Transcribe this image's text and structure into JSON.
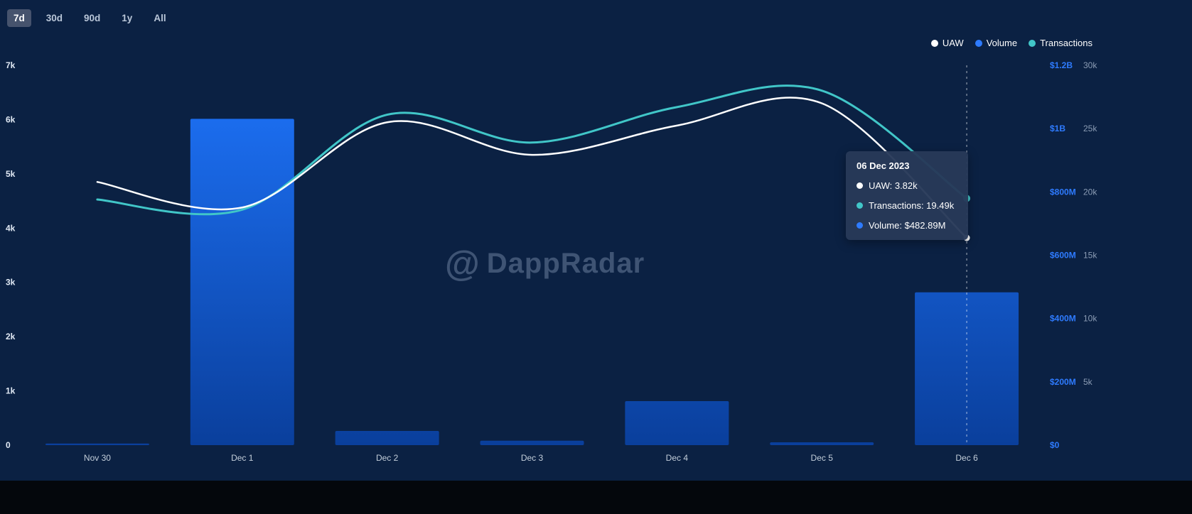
{
  "toolbar": {
    "ranges": [
      {
        "label": "7d",
        "active": true
      },
      {
        "label": "30d",
        "active": false
      },
      {
        "label": "90d",
        "active": false
      },
      {
        "label": "1y",
        "active": false
      },
      {
        "label": "All",
        "active": false
      }
    ]
  },
  "legend": {
    "items": [
      {
        "label": "UAW",
        "color": "#ffffff"
      },
      {
        "label": "Volume",
        "color": "#2e7bff"
      },
      {
        "label": "Transactions",
        "color": "#41c6c8"
      }
    ]
  },
  "tooltip": {
    "date": "06 Dec 2023",
    "rows": [
      {
        "label": "UAW: 3.82k",
        "color": "#ffffff"
      },
      {
        "label": "Transactions: 19.49k",
        "color": "#41c6c8"
      },
      {
        "label": "Volume: $482.89M",
        "color": "#2e7bff"
      }
    ]
  },
  "watermark": {
    "logo_glyph": "@",
    "text": "DappRadar"
  },
  "colors": {
    "background": "#0b2143",
    "bar_top": "#1e74fb",
    "bar_bottom": "#0a3f9c",
    "uaw_line": "#ffffff",
    "transactions_line": "#41c6c8",
    "volume_axis_labels": "#2e7bff",
    "active_range_bg": "#46536d"
  },
  "chart_data": {
    "type": "mixed",
    "categories": [
      "Nov 30",
      "Dec 1",
      "Dec 2",
      "Dec 3",
      "Dec 4",
      "Dec 5",
      "Dec 6"
    ],
    "series": [
      {
        "name": "UAW",
        "type": "line",
        "axis": "left",
        "color": "#ffffff",
        "values": [
          4850,
          4380,
          5950,
          5350,
          5890,
          6300,
          3820
        ]
      },
      {
        "name": "Volume",
        "type": "bar",
        "axis": "volume",
        "color": "#1b6dfa",
        "values": [
          5000000,
          1031000000,
          45000000,
          14000000,
          139000000,
          9000000,
          482890000
        ]
      },
      {
        "name": "Transactions",
        "type": "line",
        "axis": "transactions",
        "color": "#41c6c8",
        "values": [
          19400,
          18600,
          26100,
          23900,
          26700,
          28000,
          19490
        ]
      }
    ],
    "left_axis": {
      "title": "UAW",
      "min": 0,
      "max": 7000,
      "ticks": [
        "0",
        "1k",
        "2k",
        "3k",
        "4k",
        "5k",
        "6k",
        "7k"
      ]
    },
    "volume_axis": {
      "title": "Volume",
      "min": 0,
      "max": 1200000000,
      "ticks": [
        "$0",
        "$200M",
        "$400M",
        "$600M",
        "$800M",
        "$1B",
        "$1.2B"
      ]
    },
    "transactions_axis": {
      "title": "Transactions",
      "min": 0,
      "max": 30000,
      "ticks": [
        "5k",
        "10k",
        "15k",
        "20k",
        "25k",
        "30k"
      ]
    },
    "grid": false,
    "legend_position": "top-right",
    "highlighted_category": "Dec 6"
  }
}
